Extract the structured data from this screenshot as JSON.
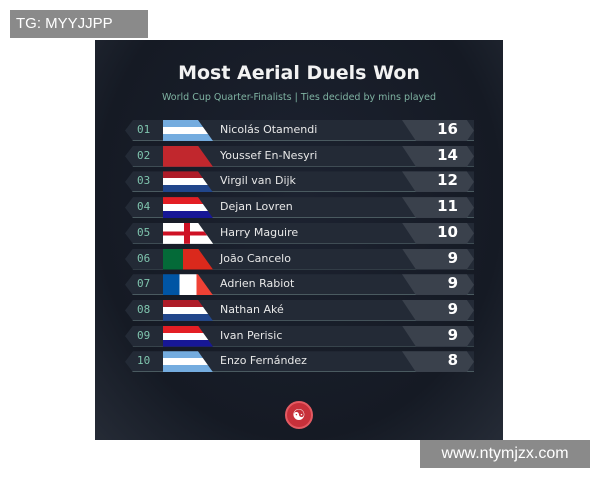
{
  "watermark_top": "TG: MYYJJPP",
  "watermark_bottom": "www.ntymjzx.com",
  "title": "Most Aerial Duels Won",
  "subtitle": "World Cup Quarter-Finalists | Ties decided by mins played",
  "rows": [
    {
      "rank": "01",
      "flag": "argentina",
      "name": "Nicolás Otamendi",
      "score": "16"
    },
    {
      "rank": "02",
      "flag": "morocco",
      "name": "Youssef En-Nesyri",
      "score": "14"
    },
    {
      "rank": "03",
      "flag": "netherlands",
      "name": "Virgil van Dijk",
      "score": "12"
    },
    {
      "rank": "04",
      "flag": "croatia",
      "name": "Dejan Lovren",
      "score": "11"
    },
    {
      "rank": "05",
      "flag": "england",
      "name": "Harry Maguire",
      "score": "10"
    },
    {
      "rank": "06",
      "flag": "portugal",
      "name": "João Cancelo",
      "score": "9"
    },
    {
      "rank": "07",
      "flag": "france",
      "name": "Adrien Rabiot",
      "score": "9"
    },
    {
      "rank": "08",
      "flag": "netherlands",
      "name": "Nathan Aké",
      "score": "9"
    },
    {
      "rank": "09",
      "flag": "croatia",
      "name": "Ivan Perisic",
      "score": "9"
    },
    {
      "rank": "10",
      "flag": "argentina",
      "name": "Enzo Fernández",
      "score": "8"
    }
  ],
  "colors": {
    "accent": "#7fc4ae",
    "logo": "#c7303a"
  }
}
